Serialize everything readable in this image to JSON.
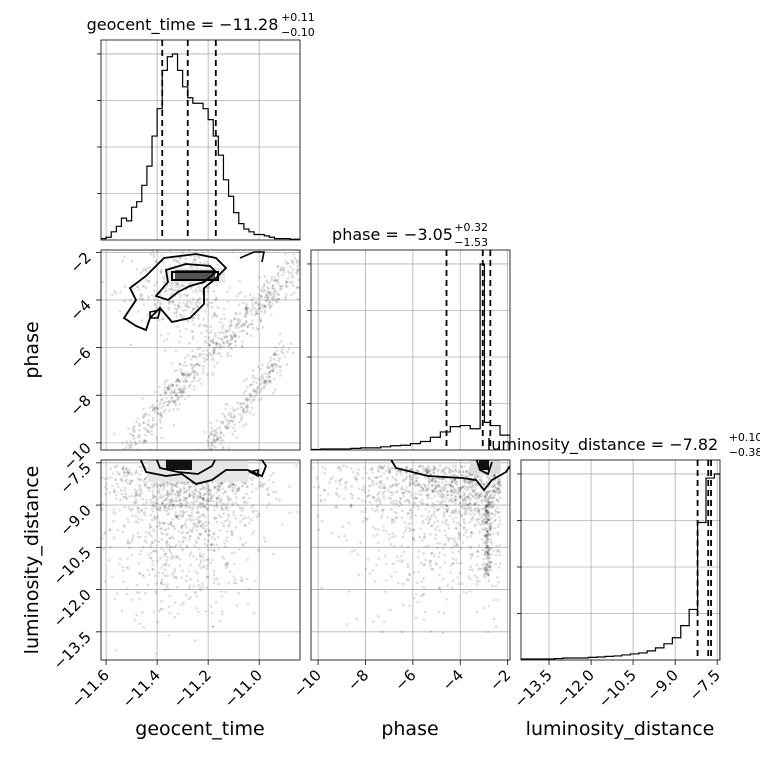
{
  "chart_data": {
    "type": "corner",
    "parameters": [
      "geocent_time",
      "phase",
      "luminosity_distance"
    ],
    "titles": [
      {
        "parameter": "geocent_time",
        "label": "geocent_time = −11.28",
        "sup": "+0.11",
        "sub": "−0.10"
      },
      {
        "parameter": "phase",
        "label": "phase = −3.05",
        "sup": "+0.32",
        "sub": "−1.53"
      },
      {
        "parameter": "luminosity_distance",
        "label": "luminosity_distance = −7.82",
        "sup": "+0.10",
        "sub": "−0.38"
      }
    ],
    "axis_labels": {
      "geocent_time": "geocent_time",
      "phase": "phase",
      "luminosity_distance": "luminosity_distance"
    },
    "ranges": {
      "geocent_time": [
        -11.62,
        -10.84
      ],
      "phase": [
        -10.3,
        -1.9
      ],
      "luminosity_distance": [
        -14.5,
        -7.4
      ]
    },
    "ticks": {
      "geocent_time": {
        "values": [
          -11.6,
          -11.4,
          -11.2,
          -11.0
        ],
        "labels": [
          "−11.6",
          "−11.4",
          "−11.2",
          "−11.0"
        ]
      },
      "phase": {
        "values": [
          -10,
          -8,
          -6,
          -4,
          -2
        ],
        "labels": [
          "−10",
          "−8",
          "−6",
          "−4",
          "−2"
        ]
      },
      "luminosity_distance": {
        "values": [
          -13.5,
          -12.0,
          -10.5,
          -9.0,
          -7.5
        ],
        "labels": [
          "−13.5",
          "−12.0",
          "−10.5",
          "−9.0",
          "−7.5"
        ]
      }
    },
    "quantiles": {
      "geocent_time": [
        -11.38,
        -11.28,
        -11.17
      ],
      "phase": [
        -4.58,
        -3.05,
        -2.73
      ],
      "luminosity_distance": [
        -8.2,
        -7.82,
        -7.72
      ]
    },
    "histograms": {
      "geocent_time": {
        "edges": [
          -11.62,
          -11.6,
          -11.58,
          -11.56,
          -11.54,
          -11.52,
          -11.5,
          -11.48,
          -11.46,
          -11.44,
          -11.42,
          -11.4,
          -11.38,
          -11.36,
          -11.34,
          -11.32,
          -11.3,
          -11.28,
          -11.26,
          -11.24,
          -11.22,
          -11.2,
          -11.18,
          -11.16,
          -11.14,
          -11.12,
          -11.1,
          -11.08,
          -11.06,
          -11.04,
          -11.02,
          -11.0,
          -10.98,
          -10.96,
          -10.94,
          -10.92,
          -10.9,
          -10.88,
          -10.86,
          -10.84
        ],
        "counts": [
          0.5,
          1,
          3,
          5,
          8,
          7,
          12,
          14,
          20,
          27,
          38,
          48,
          62,
          67,
          68,
          62,
          56,
          52,
          50,
          50,
          48,
          44,
          38,
          31,
          22,
          16,
          10,
          6,
          4,
          3,
          2,
          2,
          1.5,
          1,
          0.5,
          0.5,
          0.5,
          0.3,
          0.3
        ]
      },
      "phase": {
        "edges": [
          -10.3,
          -9.88,
          -9.46,
          -9.04,
          -8.62,
          -8.2,
          -7.78,
          -7.36,
          -6.94,
          -6.52,
          -6.1,
          -5.68,
          -5.26,
          -4.84,
          -4.42,
          -4.0,
          -3.58,
          -3.16,
          -2.98,
          -2.74,
          -2.32,
          -1.9
        ],
        "counts": [
          0.5,
          1,
          1,
          1,
          1.5,
          2,
          2,
          3,
          4,
          4.5,
          6,
          8,
          12,
          17,
          22,
          23,
          20,
          175,
          26,
          23,
          14
        ]
      },
      "luminosity_distance": {
        "edges": [
          -14.5,
          -14.2,
          -13.9,
          -13.6,
          -13.3,
          -13.0,
          -12.7,
          -12.4,
          -12.1,
          -11.8,
          -11.5,
          -11.2,
          -10.9,
          -10.6,
          -10.3,
          -10.0,
          -9.7,
          -9.4,
          -9.1,
          -8.8,
          -8.5,
          -8.2,
          -7.9,
          -7.6,
          -7.4
        ],
        "counts": [
          0.5,
          0.5,
          0.5,
          0.5,
          0.7,
          1,
          1,
          1,
          1.3,
          1.5,
          1.8,
          2,
          2.5,
          3,
          3.5,
          4.5,
          6,
          8,
          11,
          17,
          25,
          68,
          90,
          92
        ]
      }
    },
    "grid": true,
    "contours": true,
    "scatter": true
  }
}
